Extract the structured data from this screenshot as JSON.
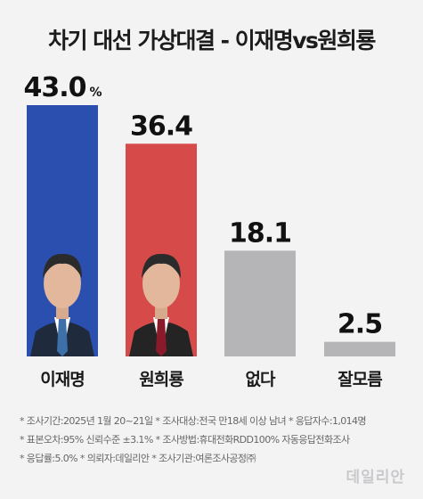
{
  "title": "차기 대선 가상대결 - 이재명vs원희룡",
  "chart_data": {
    "type": "bar",
    "categories": [
      "이재명",
      "원희룡",
      "없다",
      "잘모름"
    ],
    "values": [
      43.0,
      36.4,
      18.1,
      2.5
    ],
    "value_labels": [
      "43.0",
      "36.4",
      "18.1",
      "2.5"
    ],
    "first_value_unit": "%",
    "colors": [
      "#2a4fae",
      "#d64a4a",
      "#b5b5b7",
      "#b5b5b7"
    ],
    "ylim": [
      0,
      43.0
    ],
    "title": "차기 대선 가상대결 - 이재명vs원희룡"
  },
  "notes": [
    "* 조사기간:2025년 1월 20~21일  * 조사대상:전국 만18세 이상 남녀  * 응답자수:1,014명",
    "* 표본오차:95% 신뢰수준 ±3.1%  * 조사방법:휴대전화RDD100% 자동응답전화조사",
    "* 응답률:5.0%  * 의뢰자:데일리안  * 조사기관:여론조사공정㈜"
  ],
  "watermark": "데일리안"
}
